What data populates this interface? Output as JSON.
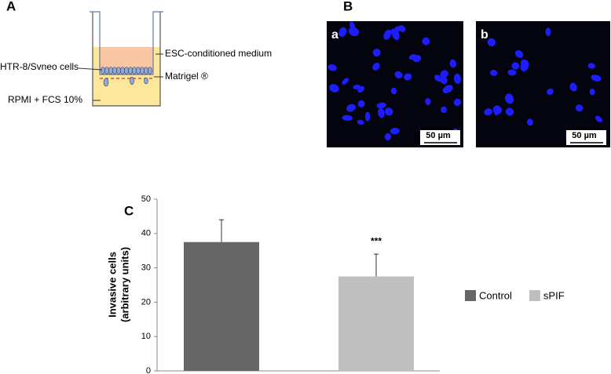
{
  "panel_a": {
    "label": "A",
    "annotations": [
      "HTR-8/Svneo cells",
      "ESC-conditioned medium",
      "Matrigel ®",
      "RPMI + FCS 10%"
    ]
  },
  "panel_b": {
    "label": "B",
    "images": [
      {
        "label": "a",
        "scale_bar": "50 µm"
      },
      {
        "label": "b",
        "scale_bar": "50 µm"
      }
    ]
  },
  "chart_data": {
    "type": "bar",
    "label": "C",
    "y_label": [
      "Invasive cells",
      "(arbitrary units)"
    ],
    "categories": [
      null,
      null
    ],
    "series": [
      {
        "name": "Control",
        "color": "#666666",
        "values": [
          37.5,
          null
        ],
        "errors": [
          6.5,
          null
        ]
      },
      {
        "name": "sPIF",
        "color": "#bfbfbf",
        "values": [
          null,
          27.5
        ],
        "errors": [
          null,
          6.5
        ]
      }
    ],
    "annotations": [
      null,
      "***"
    ],
    "ylim": [
      0,
      50
    ],
    "yticks": [
      0,
      10,
      20,
      30,
      40,
      50
    ],
    "legend": "right"
  }
}
